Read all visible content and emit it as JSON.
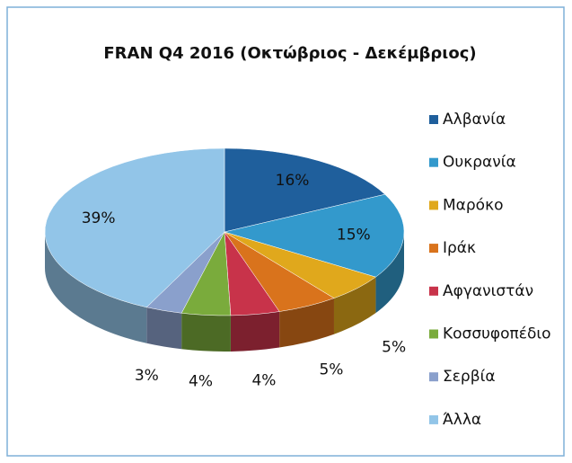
{
  "chart_data": {
    "type": "pie",
    "title": "FRAN  Q4 2016 (Οκτώβριος - Δεκέμβριος)",
    "categories": [
      "Αλβανία",
      "Ουκρανία",
      "Μαρόκο",
      "Ιράκ",
      "Αφγανιστάν",
      "Κοσσυφοπέδιο",
      "Σερβία",
      "Άλλα"
    ],
    "values": [
      16,
      15,
      5,
      5,
      4,
      4,
      3,
      39
    ],
    "value_labels": [
      "16%",
      "15%",
      "5%",
      "5%",
      "4%",
      "4%",
      "3%",
      "39%"
    ],
    "colors": [
      "#1f5f9c",
      "#3399cc",
      "#e0a81c",
      "#d9731c",
      "#c8334a",
      "#7aab3c",
      "#8aa0cc",
      "#92c5e8"
    ],
    "legend": "right"
  }
}
